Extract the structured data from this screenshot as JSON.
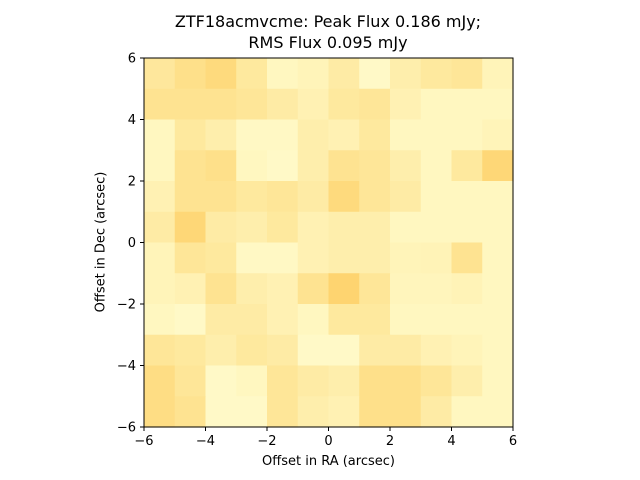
{
  "chart_data": {
    "type": "heatmap",
    "title": "ZTF18acmvcme: Peak Flux 0.186 mJy;\nRMS Flux 0.095 mJy",
    "title_lines": [
      "ZTF18acmvcme: Peak Flux 0.186 mJy;",
      "RMS Flux 0.095 mJy"
    ],
    "xlabel": "Offset in RA (arcsec)",
    "ylabel": "Offset in Dec (arcsec)",
    "xlim": [
      -6,
      6
    ],
    "ylim": [
      -6,
      6
    ],
    "xticks": [
      "−6",
      "−4",
      "−2",
      "0",
      "2",
      "4",
      "6"
    ],
    "yticks": [
      "−6",
      "−4",
      "−2",
      "0",
      "2",
      "4",
      "6"
    ],
    "xtick_values": [
      -6,
      -4,
      -2,
      0,
      2,
      4,
      6
    ],
    "ytick_values": [
      -6,
      -4,
      -2,
      0,
      2,
      4,
      6
    ],
    "colormap": [
      "#ffffd4",
      "#fee391",
      "#fec44f"
    ],
    "grid": false,
    "z": [
      [
        0.42,
        0.55,
        0.65,
        0.4,
        0.15,
        0.2,
        0.35,
        0.1,
        0.3,
        0.4,
        0.45,
        0.2
      ],
      [
        0.5,
        0.5,
        0.5,
        0.45,
        0.35,
        0.25,
        0.4,
        0.45,
        0.25,
        0.15,
        0.15,
        0.15
      ],
      [
        0.15,
        0.4,
        0.3,
        0.12,
        0.12,
        0.3,
        0.25,
        0.4,
        0.15,
        0.15,
        0.15,
        0.2
      ],
      [
        0.15,
        0.5,
        0.55,
        0.15,
        0.1,
        0.3,
        0.5,
        0.45,
        0.3,
        0.15,
        0.4,
        0.7
      ],
      [
        0.25,
        0.5,
        0.5,
        0.4,
        0.45,
        0.35,
        0.65,
        0.45,
        0.35,
        0.15,
        0.15,
        0.15
      ],
      [
        0.35,
        0.7,
        0.35,
        0.3,
        0.4,
        0.25,
        0.3,
        0.3,
        0.15,
        0.15,
        0.15,
        0.15
      ],
      [
        0.2,
        0.45,
        0.4,
        0.12,
        0.12,
        0.25,
        0.3,
        0.3,
        0.2,
        0.22,
        0.5,
        0.15
      ],
      [
        0.2,
        0.25,
        0.5,
        0.3,
        0.25,
        0.5,
        0.75,
        0.45,
        0.18,
        0.18,
        0.22,
        0.15
      ],
      [
        0.15,
        0.1,
        0.35,
        0.35,
        0.25,
        0.15,
        0.4,
        0.4,
        0.15,
        0.15,
        0.15,
        0.15
      ],
      [
        0.45,
        0.4,
        0.3,
        0.4,
        0.35,
        0.1,
        0.1,
        0.35,
        0.35,
        0.25,
        0.2,
        0.15
      ],
      [
        0.6,
        0.45,
        0.1,
        0.15,
        0.45,
        0.35,
        0.3,
        0.55,
        0.55,
        0.45,
        0.3,
        0.15
      ],
      [
        0.6,
        0.5,
        0.1,
        0.1,
        0.45,
        0.3,
        0.25,
        0.55,
        0.55,
        0.35,
        0.15,
        0.15
      ]
    ]
  }
}
